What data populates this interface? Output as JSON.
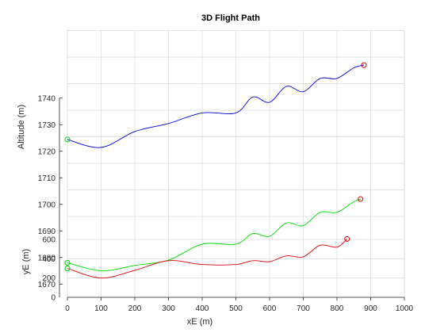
{
  "chart_data": {
    "type": "line",
    "title": "3D Flight Path",
    "xlabel": "xE (m)",
    "ylabel": "yE (m)",
    "zlabel": "Altitude (m)",
    "x_ticks": [
      0,
      100,
      200,
      300,
      400,
      500,
      600,
      700,
      800,
      900,
      1000
    ],
    "y_ticks": [
      0,
      200,
      400,
      600
    ],
    "z_ticks": [
      1670,
      1680,
      1690,
      1700,
      1710,
      1720,
      1730,
      1740
    ],
    "xlim": [
      0,
      1000
    ],
    "ylim": [
      0,
      700
    ],
    "zlim": [
      1665,
      1740
    ],
    "grid": true,
    "start_marker_color": "#00cc00",
    "end_marker_color": "#e00000",
    "series": [
      {
        "color": "#0000dd",
        "x": [
          0,
          100,
          200,
          300,
          400,
          500,
          550,
          600,
          650,
          700,
          750,
          800,
          850,
          880
        ],
        "y": [
          700,
          700,
          700,
          700,
          700,
          700,
          700,
          700,
          700,
          700,
          700,
          700,
          700,
          700
        ],
        "z": [
          1699,
          1696,
          1702,
          1705,
          1709,
          1709,
          1715,
          1713,
          1719,
          1717,
          1722,
          1722,
          1726,
          1727
        ]
      },
      {
        "color": "#00dd00",
        "x": [
          0,
          100,
          200,
          300,
          400,
          500,
          550,
          600,
          650,
          700,
          750,
          800,
          850,
          870
        ],
        "y": [
          0,
          0,
          0,
          0,
          0,
          0,
          0,
          0,
          0,
          0,
          0,
          0,
          0,
          0
        ],
        "z": [
          1678,
          1675,
          1677,
          1679,
          1685,
          1685,
          1689,
          1688,
          1693,
          1692,
          1697,
          1697,
          1701,
          1702
        ]
      },
      {
        "color": "#dd0000",
        "x": [
          0,
          100,
          200,
          300,
          400,
          500,
          550,
          600,
          650,
          700,
          750,
          800,
          830
        ],
        "y": [
          300,
          200,
          280,
          380,
          340,
          340,
          380,
          370,
          430,
          420,
          540,
          520,
          605
        ],
        "z": [
          1665,
          1665,
          1665,
          1665,
          1665,
          1665,
          1665,
          1665,
          1665,
          1665,
          1665,
          1665,
          1665
        ]
      }
    ]
  }
}
